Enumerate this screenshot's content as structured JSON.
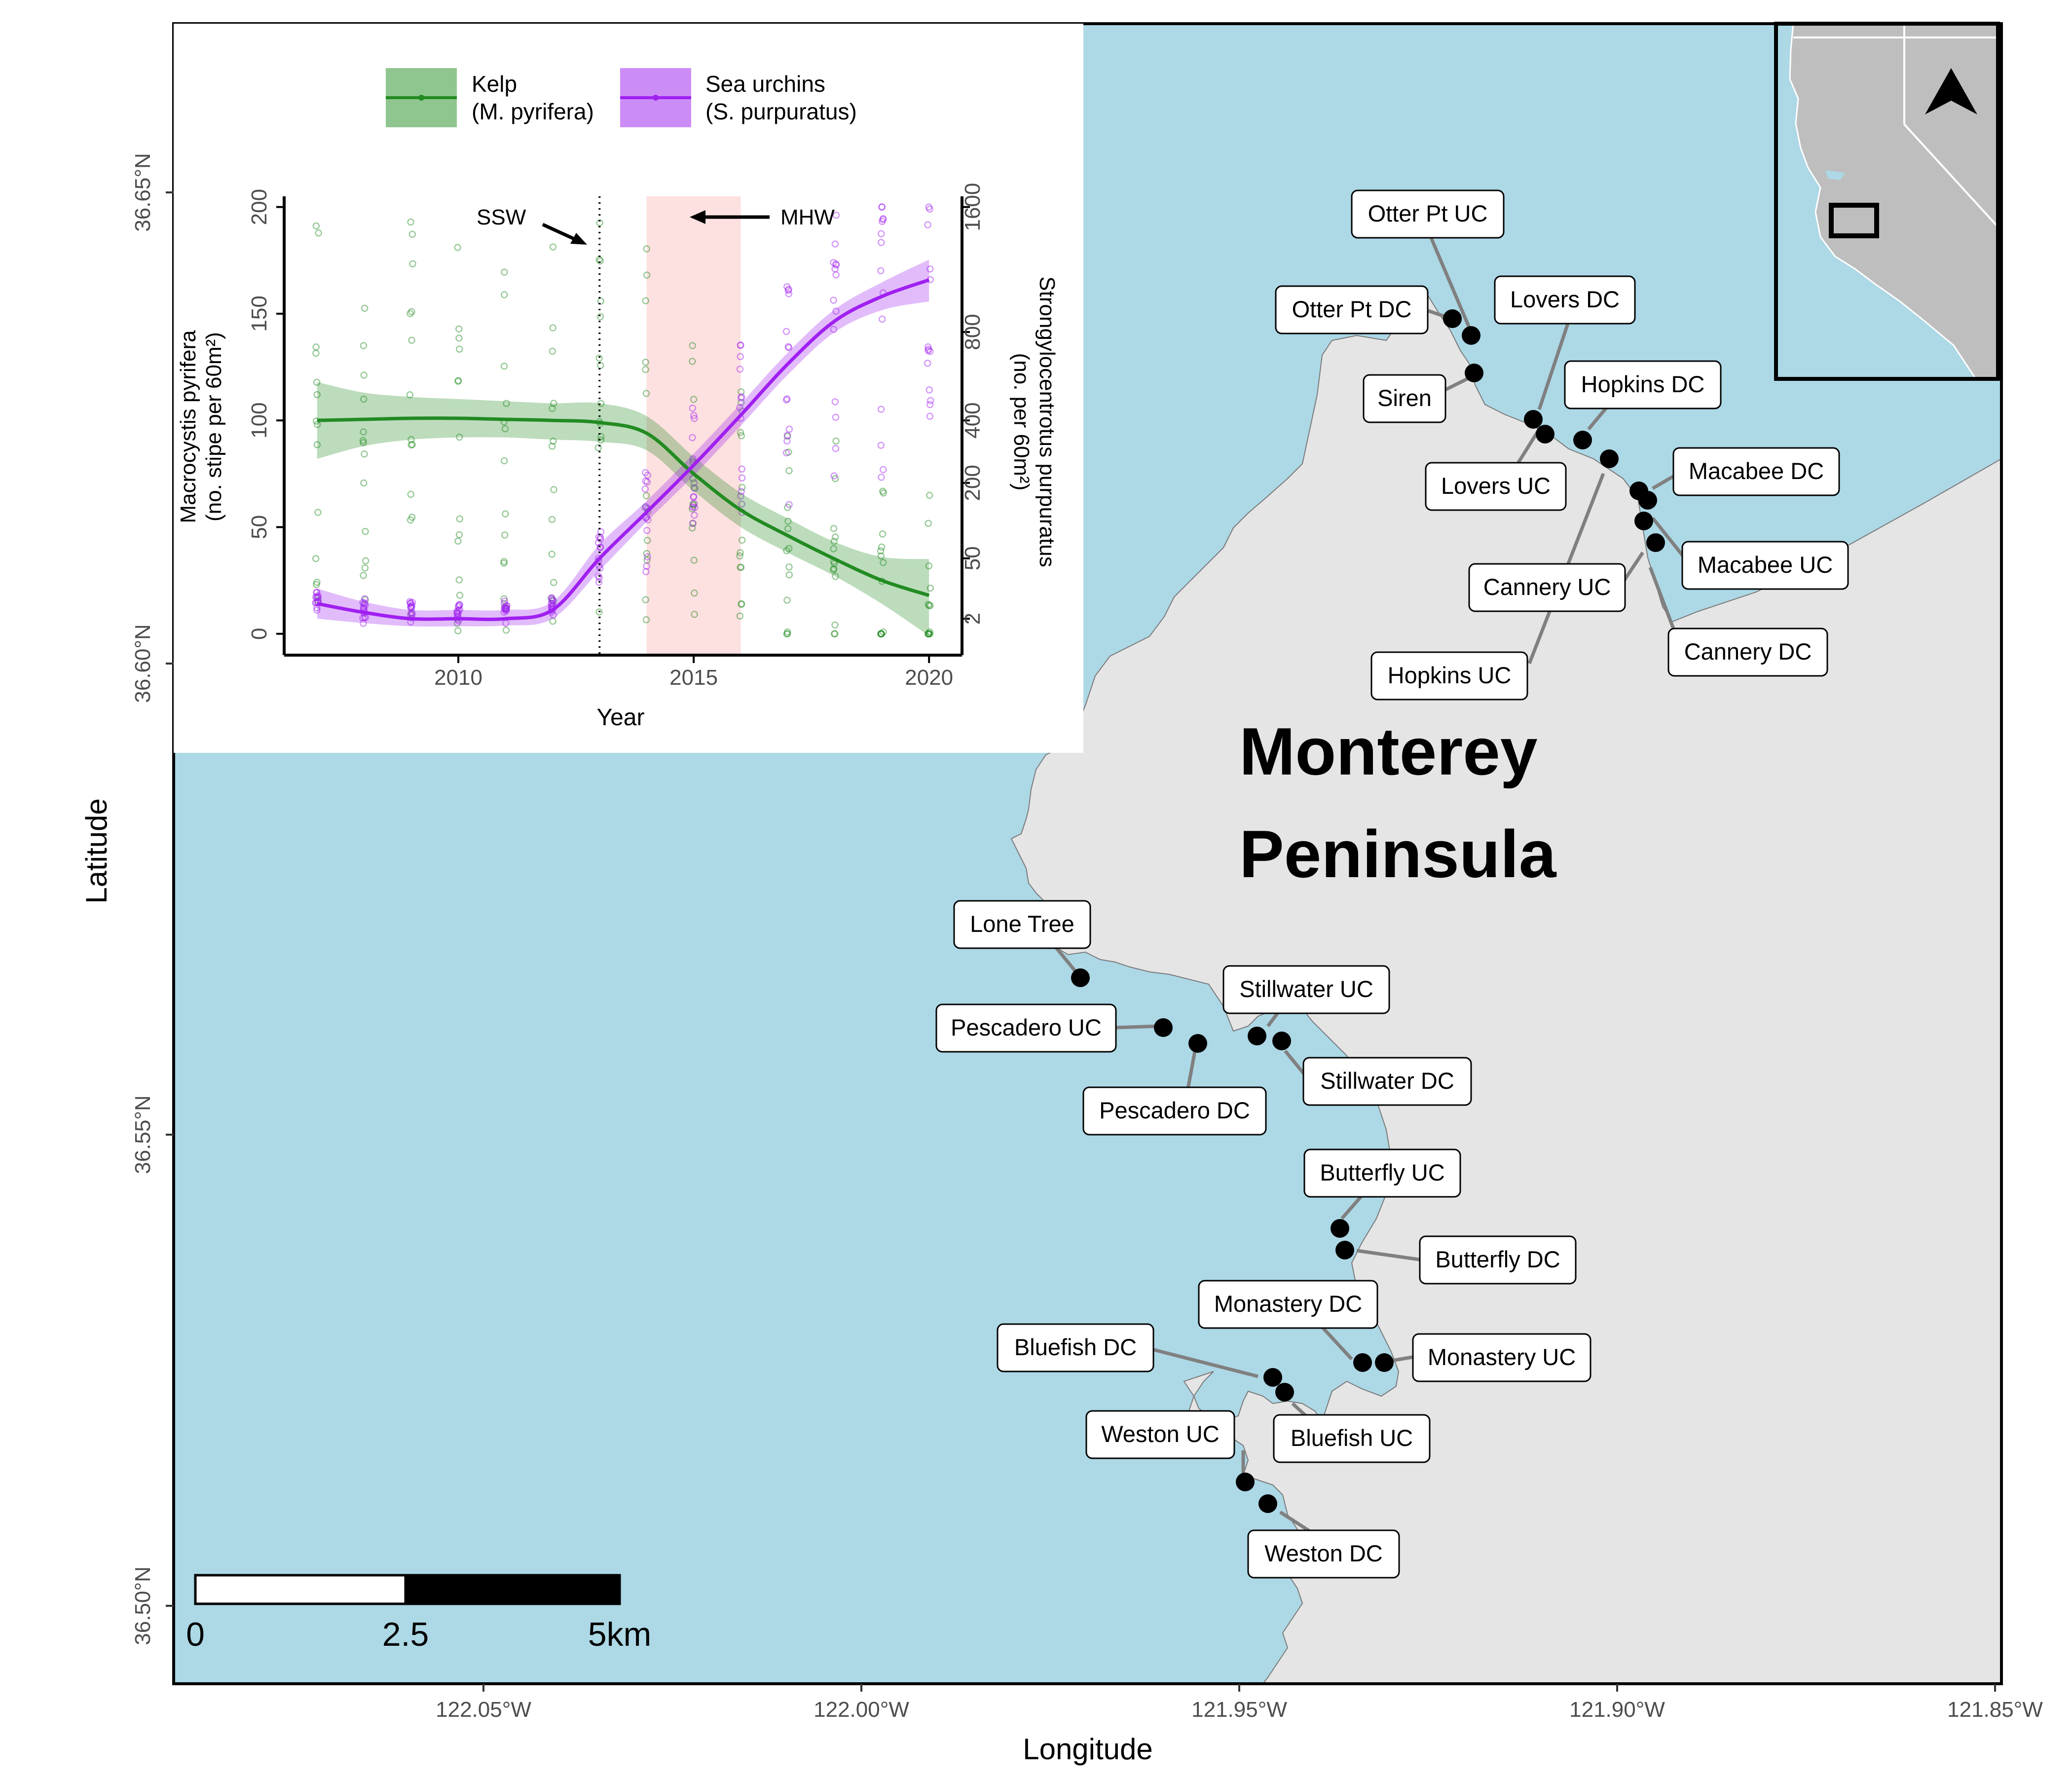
{
  "map": {
    "axis_x_title": "Longitude",
    "axis_y_title": "Latitude",
    "lon_ticks": [
      {
        "lon": -122.05,
        "label": "122.05°W"
      },
      {
        "lon": -122.0,
        "label": "122.00°W"
      },
      {
        "lon": -121.95,
        "label": "121.95°W"
      },
      {
        "lon": -121.9,
        "label": "121.90°W"
      },
      {
        "lon": -121.85,
        "label": "121.85°W"
      }
    ],
    "lat_ticks": [
      {
        "lat": 36.65,
        "label": "36.65°N"
      },
      {
        "lat": 36.6,
        "label": "36.60°N"
      },
      {
        "lat": 36.55,
        "label": "36.55°N"
      },
      {
        "lat": 36.5,
        "label": "36.50°N"
      }
    ],
    "place_label_line1": "Monterey",
    "place_label_line2": "Peninsula",
    "scale_bar": {
      "label_0": "0",
      "label_mid": "2.5",
      "label_end": "5km"
    },
    "colors": {
      "ocean": "#add8e6",
      "land": "#e5e5e5",
      "site": "#000000",
      "leader": "#808080",
      "frame": "#000000"
    }
  },
  "sites": [
    {
      "name": "Otter Pt UC"
    },
    {
      "name": "Otter Pt DC"
    },
    {
      "name": "Siren"
    },
    {
      "name": "Lovers DC"
    },
    {
      "name": "Lovers UC"
    },
    {
      "name": "Hopkins DC"
    },
    {
      "name": "Hopkins UC"
    },
    {
      "name": "Macabee DC"
    },
    {
      "name": "Macabee UC"
    },
    {
      "name": "Cannery UC"
    },
    {
      "name": "Cannery DC"
    },
    {
      "name": "Lone Tree"
    },
    {
      "name": "Pescadero UC"
    },
    {
      "name": "Pescadero DC"
    },
    {
      "name": "Stillwater UC"
    },
    {
      "name": "Stillwater DC"
    },
    {
      "name": "Butterfly UC"
    },
    {
      "name": "Butterfly DC"
    },
    {
      "name": "Monastery DC"
    },
    {
      "name": "Monastery UC"
    },
    {
      "name": "Bluefish DC"
    },
    {
      "name": "Bluefish UC"
    },
    {
      "name": "Weston UC"
    },
    {
      "name": "Weston DC"
    }
  ],
  "chart_data": {
    "type": "line",
    "xlabel": "Year",
    "ylabel_left_line1": "Macrocystis pyrifera",
    "ylabel_left_line2": "(no. stipe per 60m²)",
    "ylabel_right_line1": "Strongylocentrotus purpuratus",
    "ylabel_right_line2": "(no. per 60m²)",
    "xlim": [
      2006.3,
      2020.7
    ],
    "x_ticks": [
      2010,
      2015,
      2020
    ],
    "y_left_lim": [
      -10,
      205
    ],
    "y_left_ticks": [
      0,
      50,
      100,
      150,
      200
    ],
    "y_right_scale": "sqrt",
    "y_right_ticks": [
      2,
      50,
      200,
      400,
      800,
      1600
    ],
    "legend": [
      {
        "title_line1": "Kelp",
        "title_line2": "(M. pyrifera)",
        "color": "#228b22"
      },
      {
        "title_line1": "Sea urchins",
        "title_line2": "(S. purpuratus)",
        "color": "#a020f0"
      }
    ],
    "legend_position": "top",
    "annotations": {
      "ssw_label": "SSW",
      "ssw_year": 2013,
      "mhw_label": "MHW",
      "mhw_years": [
        2014,
        2016
      ]
    },
    "series": [
      {
        "name": "Kelp",
        "axis": "left",
        "color": "#228b22",
        "x": [
          2007,
          2008,
          2009,
          2010,
          2011,
          2012,
          2013,
          2014,
          2015,
          2016,
          2017,
          2018,
          2019,
          2020
        ],
        "values": [
          100,
          100.5,
          101,
          101,
          100.5,
          100,
          99,
          94,
          75,
          58,
          46,
          35,
          25,
          18
        ],
        "ci_lower": [
          82,
          88,
          91,
          92,
          92,
          91,
          90,
          86,
          67,
          50,
          38,
          27,
          14,
          -1
        ],
        "ci_upper": [
          118,
          113,
          111,
          110,
          109,
          108,
          108,
          102,
          83,
          66,
          54,
          43,
          36,
          35
        ]
      },
      {
        "name": "Sea urchins",
        "axis": "right",
        "color": "#a020f0",
        "x": [
          2007,
          2008,
          2009,
          2010,
          2011,
          2012,
          2013,
          2014,
          2015,
          2016,
          2017,
          2018,
          2019,
          2020
        ],
        "values": [
          8,
          4,
          2,
          2,
          2,
          5,
          50,
          130,
          250,
          420,
          640,
          860,
          1000,
          1100
        ],
        "ci_lower": [
          2,
          1,
          0.5,
          0.5,
          0.6,
          2,
          35,
          110,
          220,
          380,
          590,
          800,
          920,
          970
        ],
        "ci_upper": [
          18,
          9,
          5,
          5,
          5,
          9,
          70,
          155,
          285,
          465,
          695,
          925,
          1085,
          1230
        ]
      }
    ]
  }
}
